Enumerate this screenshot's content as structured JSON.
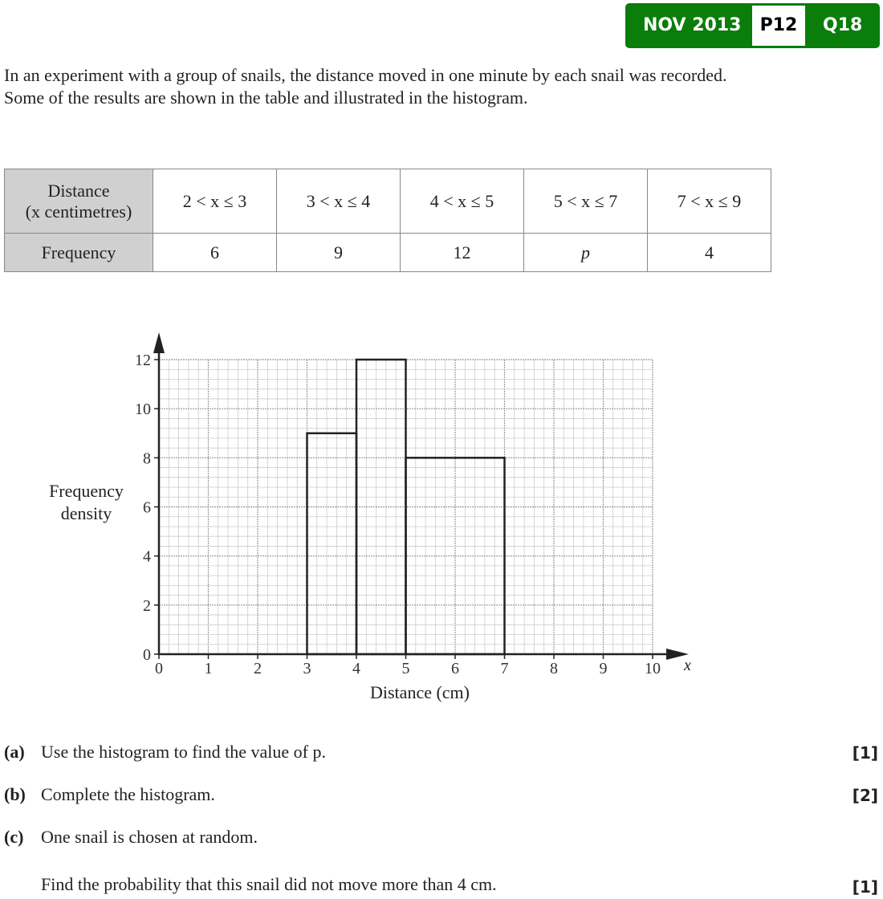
{
  "header": {
    "session": "NOV 2013",
    "paper": "P12",
    "question": "Q18",
    "color": "#0a7d0a"
  },
  "intro": {
    "line1": "In an experiment with a group of snails, the distance moved in one minute by each snail was recorded.",
    "line2": "Some of the results are shown in the table and illustrated in the histogram."
  },
  "table": {
    "row_header_1": "Distance",
    "row_header_1b": "(x centimetres)",
    "row_header_2": "Frequency",
    "intervals": [
      "2 < x ≤ 3",
      "3 < x ≤ 4",
      "4 < x ≤ 5",
      "5 < x ≤ 7",
      "7 < x ≤ 9"
    ],
    "frequencies": [
      "6",
      "9",
      "12",
      "p",
      "4"
    ]
  },
  "chart_data": {
    "type": "bar",
    "subtype": "histogram",
    "xlabel": "Distance (cm)",
    "x_axis_symbol": "x",
    "ylabel": "Frequency density",
    "xlim": [
      0,
      10
    ],
    "ylim": [
      0,
      12
    ],
    "x_ticks": [
      "0",
      "1",
      "2",
      "3",
      "4",
      "5",
      "6",
      "7",
      "8",
      "9",
      "10"
    ],
    "y_ticks": [
      "0",
      "2",
      "4",
      "6",
      "8",
      "10",
      "12"
    ],
    "grid": true,
    "bars": [
      {
        "from": 3,
        "to": 4,
        "value": 9
      },
      {
        "from": 4,
        "to": 5,
        "value": 12
      },
      {
        "from": 5,
        "to": 7,
        "value": 8
      }
    ]
  },
  "questions": [
    {
      "label": "(a)",
      "text": "Use the histogram to find the value of p.",
      "marks": "[1]"
    },
    {
      "label": "(b)",
      "text": "Complete the histogram.",
      "marks": "[2]"
    },
    {
      "label": "(c)",
      "text": "One snail is chosen at random.",
      "marks": ""
    },
    {
      "label": "",
      "text": "Find the probability that this snail did not move more than 4 cm.",
      "marks": "[1]"
    }
  ]
}
